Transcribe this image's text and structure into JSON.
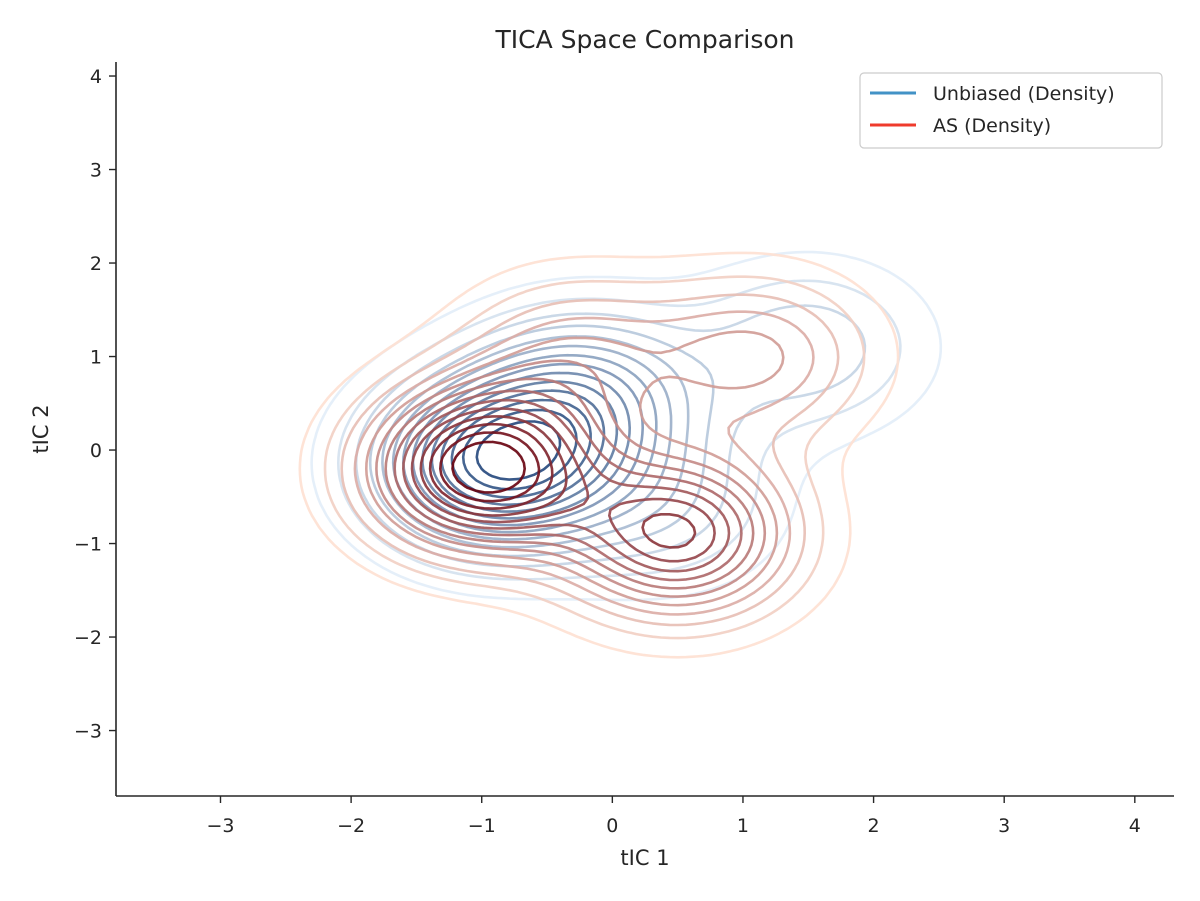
{
  "chart_data": {
    "type": "contour",
    "title": "TICA Space Comparison",
    "xlabel": "tIC 1",
    "ylabel": "tIC 2",
    "xlim": [
      -3.8,
      4.3
    ],
    "ylim": [
      -3.7,
      4.15
    ],
    "xticks": [
      -3,
      -2,
      -1,
      0,
      1,
      2,
      3,
      4
    ],
    "yticks": [
      -3,
      -2,
      -1,
      0,
      1,
      2,
      3,
      4
    ],
    "xtick_labels": [
      "−3",
      "−2",
      "−1",
      "0",
      "1",
      "2",
      "3",
      "4"
    ],
    "ytick_labels": [
      "−3",
      "−2",
      "−1",
      "0",
      "1",
      "2",
      "3",
      "4"
    ],
    "grid": false,
    "legend_position": "top-right",
    "series": [
      {
        "name": "Unbiased (Density)",
        "color": "#4292c6",
        "colormap": "Blues",
        "density_peaks": [
          {
            "x": -0.9,
            "y": -0.15,
            "weight": 1.0
          },
          {
            "x": -0.2,
            "y": 0.6,
            "weight": 0.55
          },
          {
            "x": 1.5,
            "y": 1.1,
            "weight": 0.3
          },
          {
            "x": 0.4,
            "y": -0.6,
            "weight": 0.25
          }
        ]
      },
      {
        "name": "AS (Density)",
        "color": "#ef3b2c",
        "colormap": "Reds",
        "density_peaks": [
          {
            "x": -1.0,
            "y": -0.2,
            "weight": 1.0
          },
          {
            "x": 0.5,
            "y": -0.9,
            "weight": 0.75
          },
          {
            "x": 1.1,
            "y": 1.0,
            "weight": 0.35
          },
          {
            "x": -0.3,
            "y": 1.0,
            "weight": 0.3
          }
        ]
      }
    ]
  }
}
